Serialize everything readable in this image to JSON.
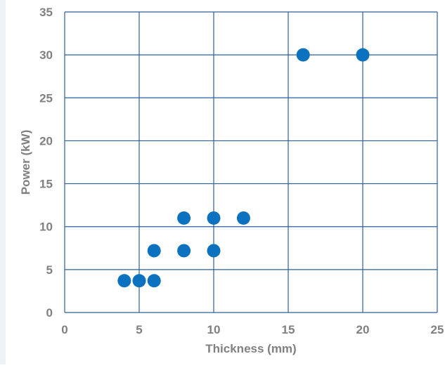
{
  "chart_data": {
    "type": "scatter",
    "xlabel": "Thickness (mm)",
    "ylabel": "Power (kW)",
    "xlim": [
      0,
      25
    ],
    "ylim": [
      0,
      35
    ],
    "x_ticks": [
      0,
      5,
      10,
      15,
      20,
      25
    ],
    "y_ticks": [
      0,
      5,
      10,
      15,
      20,
      25,
      30,
      35
    ],
    "x_tick_labels": [
      "0",
      "5",
      "10",
      "15",
      "20",
      "25"
    ],
    "y_tick_labels": [
      "0",
      "5",
      "10",
      "15",
      "20",
      "25",
      "30",
      "35"
    ],
    "grid": true,
    "series": [
      {
        "color": "#0c72c0",
        "points": [
          {
            "x": 4,
            "y": 3.7
          },
          {
            "x": 5,
            "y": 3.7
          },
          {
            "x": 6,
            "y": 3.7
          },
          {
            "x": 6,
            "y": 7.2
          },
          {
            "x": 8,
            "y": 7.2
          },
          {
            "x": 10,
            "y": 7.2
          },
          {
            "x": 8,
            "y": 11
          },
          {
            "x": 10,
            "y": 11
          },
          {
            "x": 12,
            "y": 11
          },
          {
            "x": 16,
            "y": 30
          },
          {
            "x": 20,
            "y": 30
          }
        ]
      }
    ],
    "colors": {
      "grid": "#2e5f9a",
      "axis_text": "#808080",
      "marker": "#0c72c0"
    }
  }
}
